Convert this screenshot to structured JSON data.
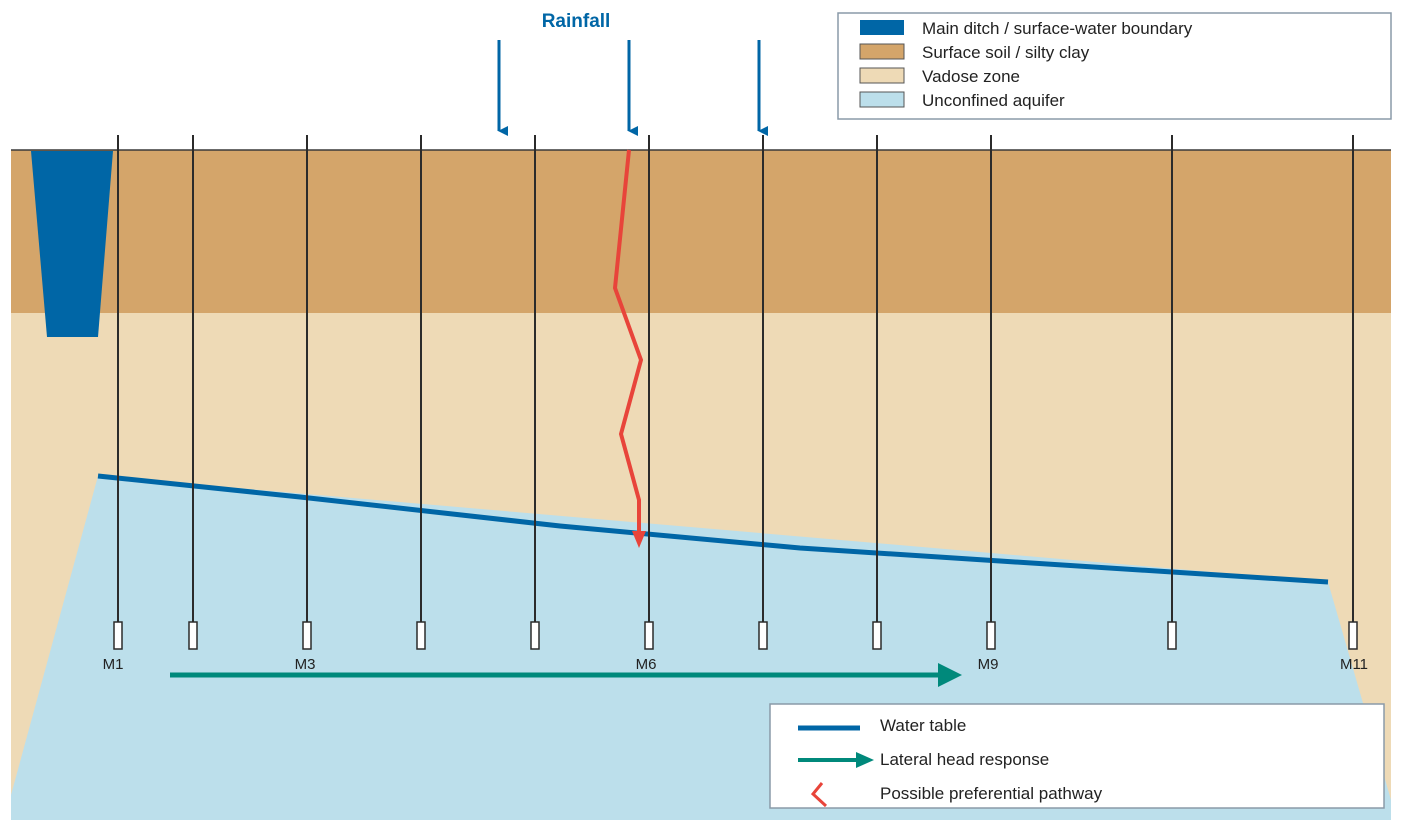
{
  "rainfall": {
    "label": "Rainfall"
  },
  "legend_top": {
    "items": [
      {
        "label": "Main ditch / surface-water boundary",
        "color": "#0066a6"
      },
      {
        "label": "Surface soil / silty clay",
        "color": "#d4a56a"
      },
      {
        "label": "Vadose zone",
        "color": "#eedab6"
      },
      {
        "label": "Unconfined aquifer",
        "color": "#bcdfeb"
      }
    ]
  },
  "legend_bottom": {
    "items": [
      {
        "label": "Water table",
        "color": "#0066a6"
      },
      {
        "label": "Lateral head response",
        "color": "#00897b"
      },
      {
        "label": "Possible preferential pathway",
        "color": "#e8443a"
      }
    ]
  },
  "wells": {
    "labels": [
      "M1",
      "M3",
      "M6",
      "M9",
      "M11"
    ]
  },
  "colors": {
    "ditch": "#0066a6",
    "surface_soil": "#d4a56a",
    "vadose": "#eedab6",
    "aquifer": "#bcdfeb",
    "water_table": "#0066a6",
    "lateral_arrow": "#00897b",
    "pathway": "#e8443a",
    "rain_arrow": "#0066a6",
    "well_line": "#2b2b2b"
  }
}
